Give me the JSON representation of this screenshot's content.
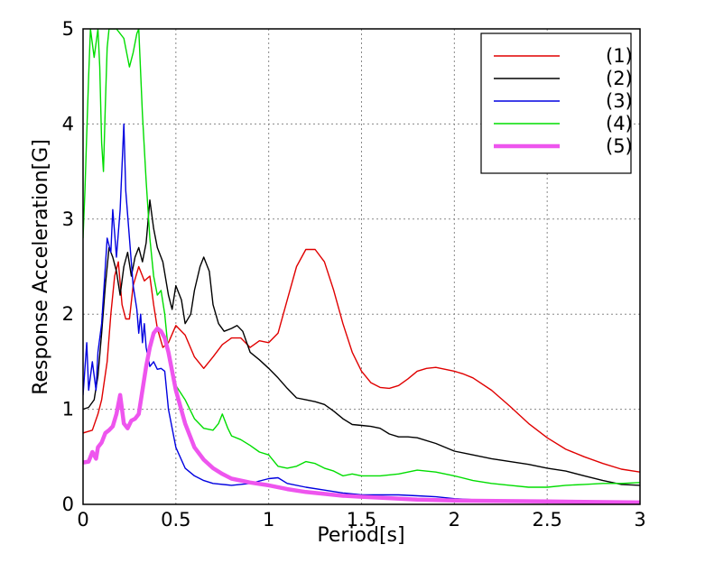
{
  "chart_data": {
    "type": "line",
    "title": "",
    "xlabel": "Period[s]",
    "ylabel": "Response Acceleration[G]",
    "xlim": [
      0,
      3
    ],
    "ylim": [
      0,
      5
    ],
    "x_ticks": [
      "0",
      "0.5",
      "1",
      "1.5",
      "2",
      "2.5",
      "3"
    ],
    "y_ticks": [
      "0",
      "1",
      "2",
      "3",
      "4",
      "5"
    ],
    "grid": true,
    "legend_position": "top-right",
    "series": [
      {
        "name": "(1)",
        "color": "#e00000",
        "line": "thin",
        "points": [
          [
            0.0,
            0.75
          ],
          [
            0.05,
            0.78
          ],
          [
            0.08,
            0.95
          ],
          [
            0.1,
            1.1
          ],
          [
            0.13,
            1.5
          ],
          [
            0.15,
            2.0
          ],
          [
            0.17,
            2.4
          ],
          [
            0.19,
            2.55
          ],
          [
            0.21,
            2.1
          ],
          [
            0.23,
            1.95
          ],
          [
            0.25,
            1.95
          ],
          [
            0.27,
            2.3
          ],
          [
            0.3,
            2.5
          ],
          [
            0.33,
            2.35
          ],
          [
            0.36,
            2.4
          ],
          [
            0.38,
            2.1
          ],
          [
            0.4,
            1.85
          ],
          [
            0.43,
            1.65
          ],
          [
            0.46,
            1.7
          ],
          [
            0.5,
            1.88
          ],
          [
            0.55,
            1.78
          ],
          [
            0.6,
            1.55
          ],
          [
            0.65,
            1.43
          ],
          [
            0.7,
            1.55
          ],
          [
            0.75,
            1.68
          ],
          [
            0.8,
            1.75
          ],
          [
            0.85,
            1.75
          ],
          [
            0.9,
            1.65
          ],
          [
            0.95,
            1.72
          ],
          [
            1.0,
            1.7
          ],
          [
            1.05,
            1.8
          ],
          [
            1.1,
            2.15
          ],
          [
            1.15,
            2.5
          ],
          [
            1.2,
            2.68
          ],
          [
            1.25,
            2.68
          ],
          [
            1.3,
            2.55
          ],
          [
            1.35,
            2.25
          ],
          [
            1.4,
            1.9
          ],
          [
            1.45,
            1.6
          ],
          [
            1.5,
            1.4
          ],
          [
            1.55,
            1.28
          ],
          [
            1.6,
            1.23
          ],
          [
            1.65,
            1.22
          ],
          [
            1.7,
            1.25
          ],
          [
            1.75,
            1.32
          ],
          [
            1.8,
            1.4
          ],
          [
            1.85,
            1.43
          ],
          [
            1.9,
            1.44
          ],
          [
            1.95,
            1.42
          ],
          [
            2.0,
            1.4
          ],
          [
            2.05,
            1.37
          ],
          [
            2.1,
            1.33
          ],
          [
            2.2,
            1.2
          ],
          [
            2.3,
            1.03
          ],
          [
            2.4,
            0.85
          ],
          [
            2.5,
            0.7
          ],
          [
            2.6,
            0.58
          ],
          [
            2.7,
            0.5
          ],
          [
            2.8,
            0.43
          ],
          [
            2.9,
            0.37
          ],
          [
            3.0,
            0.34
          ]
        ]
      },
      {
        "name": "(2)",
        "color": "#000000",
        "line": "thin",
        "points": [
          [
            0.0,
            1.0
          ],
          [
            0.03,
            1.02
          ],
          [
            0.06,
            1.1
          ],
          [
            0.08,
            1.35
          ],
          [
            0.1,
            1.8
          ],
          [
            0.12,
            2.3
          ],
          [
            0.14,
            2.7
          ],
          [
            0.16,
            2.6
          ],
          [
            0.18,
            2.45
          ],
          [
            0.2,
            2.2
          ],
          [
            0.22,
            2.5
          ],
          [
            0.24,
            2.65
          ],
          [
            0.26,
            2.4
          ],
          [
            0.28,
            2.6
          ],
          [
            0.3,
            2.7
          ],
          [
            0.32,
            2.55
          ],
          [
            0.34,
            2.75
          ],
          [
            0.36,
            3.2
          ],
          [
            0.38,
            2.9
          ],
          [
            0.4,
            2.7
          ],
          [
            0.43,
            2.55
          ],
          [
            0.46,
            2.2
          ],
          [
            0.48,
            2.05
          ],
          [
            0.5,
            2.3
          ],
          [
            0.53,
            2.15
          ],
          [
            0.55,
            1.9
          ],
          [
            0.58,
            2.0
          ],
          [
            0.6,
            2.25
          ],
          [
            0.63,
            2.5
          ],
          [
            0.65,
            2.6
          ],
          [
            0.68,
            2.45
          ],
          [
            0.7,
            2.1
          ],
          [
            0.73,
            1.9
          ],
          [
            0.76,
            1.82
          ],
          [
            0.8,
            1.85
          ],
          [
            0.83,
            1.88
          ],
          [
            0.86,
            1.82
          ],
          [
            0.9,
            1.6
          ],
          [
            0.95,
            1.52
          ],
          [
            1.0,
            1.43
          ],
          [
            1.05,
            1.33
          ],
          [
            1.1,
            1.22
          ],
          [
            1.15,
            1.12
          ],
          [
            1.2,
            1.1
          ],
          [
            1.25,
            1.08
          ],
          [
            1.3,
            1.05
          ],
          [
            1.35,
            0.98
          ],
          [
            1.4,
            0.9
          ],
          [
            1.45,
            0.84
          ],
          [
            1.5,
            0.83
          ],
          [
            1.55,
            0.82
          ],
          [
            1.6,
            0.8
          ],
          [
            1.65,
            0.74
          ],
          [
            1.7,
            0.71
          ],
          [
            1.75,
            0.71
          ],
          [
            1.8,
            0.7
          ],
          [
            1.9,
            0.64
          ],
          [
            2.0,
            0.56
          ],
          [
            2.1,
            0.52
          ],
          [
            2.2,
            0.48
          ],
          [
            2.3,
            0.45
          ],
          [
            2.4,
            0.42
          ],
          [
            2.5,
            0.38
          ],
          [
            2.6,
            0.35
          ],
          [
            2.7,
            0.3
          ],
          [
            2.8,
            0.25
          ],
          [
            2.9,
            0.21
          ],
          [
            3.0,
            0.2
          ]
        ]
      },
      {
        "name": "(3)",
        "color": "#0000e0",
        "line": "thin",
        "points": [
          [
            0.0,
            1.15
          ],
          [
            0.02,
            1.7
          ],
          [
            0.03,
            1.2
          ],
          [
            0.05,
            1.5
          ],
          [
            0.07,
            1.2
          ],
          [
            0.08,
            1.6
          ],
          [
            0.1,
            1.9
          ],
          [
            0.12,
            2.5
          ],
          [
            0.13,
            2.8
          ],
          [
            0.15,
            2.65
          ],
          [
            0.16,
            3.1
          ],
          [
            0.17,
            2.85
          ],
          [
            0.18,
            2.6
          ],
          [
            0.2,
            3.1
          ],
          [
            0.22,
            4.0
          ],
          [
            0.23,
            3.3
          ],
          [
            0.25,
            2.8
          ],
          [
            0.27,
            2.3
          ],
          [
            0.29,
            2.05
          ],
          [
            0.3,
            1.8
          ],
          [
            0.31,
            2.0
          ],
          [
            0.32,
            1.7
          ],
          [
            0.33,
            1.9
          ],
          [
            0.34,
            1.65
          ],
          [
            0.36,
            1.45
          ],
          [
            0.38,
            1.5
          ],
          [
            0.4,
            1.42
          ],
          [
            0.42,
            1.43
          ],
          [
            0.44,
            1.4
          ],
          [
            0.46,
            1.0
          ],
          [
            0.5,
            0.6
          ],
          [
            0.55,
            0.38
          ],
          [
            0.6,
            0.3
          ],
          [
            0.65,
            0.25
          ],
          [
            0.7,
            0.22
          ],
          [
            0.8,
            0.2
          ],
          [
            0.9,
            0.22
          ],
          [
            1.0,
            0.27
          ],
          [
            1.05,
            0.28
          ],
          [
            1.1,
            0.22
          ],
          [
            1.2,
            0.18
          ],
          [
            1.3,
            0.15
          ],
          [
            1.4,
            0.12
          ],
          [
            1.5,
            0.1
          ],
          [
            1.6,
            0.1
          ],
          [
            1.7,
            0.1
          ],
          [
            1.8,
            0.09
          ],
          [
            1.9,
            0.08
          ],
          [
            2.0,
            0.06
          ],
          [
            2.2,
            0.04
          ],
          [
            2.5,
            0.03
          ],
          [
            3.0,
            0.02
          ]
        ]
      },
      {
        "name": "(4)",
        "color": "#00dd00",
        "line": "thin",
        "points": [
          [
            0.0,
            2.8
          ],
          [
            0.01,
            3.3
          ],
          [
            0.02,
            3.9
          ],
          [
            0.03,
            4.5
          ],
          [
            0.04,
            5.0
          ],
          [
            0.06,
            4.7
          ],
          [
            0.08,
            5.0
          ],
          [
            0.09,
            4.6
          ],
          [
            0.1,
            3.8
          ],
          [
            0.11,
            3.5
          ],
          [
            0.12,
            4.2
          ],
          [
            0.13,
            4.8
          ],
          [
            0.14,
            5.0
          ],
          [
            0.18,
            5.0
          ],
          [
            0.22,
            4.9
          ],
          [
            0.25,
            4.6
          ],
          [
            0.27,
            4.75
          ],
          [
            0.29,
            4.95
          ],
          [
            0.3,
            5.0
          ],
          [
            0.32,
            4.1
          ],
          [
            0.34,
            3.4
          ],
          [
            0.36,
            2.8
          ],
          [
            0.38,
            2.4
          ],
          [
            0.4,
            2.2
          ],
          [
            0.42,
            2.25
          ],
          [
            0.44,
            2.0
          ],
          [
            0.46,
            1.6
          ],
          [
            0.48,
            1.35
          ],
          [
            0.5,
            1.25
          ],
          [
            0.55,
            1.1
          ],
          [
            0.6,
            0.9
          ],
          [
            0.65,
            0.8
          ],
          [
            0.7,
            0.78
          ],
          [
            0.73,
            0.85
          ],
          [
            0.75,
            0.95
          ],
          [
            0.78,
            0.8
          ],
          [
            0.8,
            0.72
          ],
          [
            0.85,
            0.68
          ],
          [
            0.9,
            0.62
          ],
          [
            0.95,
            0.55
          ],
          [
            1.0,
            0.52
          ],
          [
            1.05,
            0.4
          ],
          [
            1.1,
            0.38
          ],
          [
            1.15,
            0.4
          ],
          [
            1.2,
            0.45
          ],
          [
            1.25,
            0.43
          ],
          [
            1.3,
            0.38
          ],
          [
            1.35,
            0.35
          ],
          [
            1.4,
            0.3
          ],
          [
            1.45,
            0.32
          ],
          [
            1.5,
            0.3
          ],
          [
            1.6,
            0.3
          ],
          [
            1.7,
            0.32
          ],
          [
            1.8,
            0.36
          ],
          [
            1.9,
            0.34
          ],
          [
            2.0,
            0.3
          ],
          [
            2.1,
            0.25
          ],
          [
            2.2,
            0.22
          ],
          [
            2.3,
            0.2
          ],
          [
            2.4,
            0.18
          ],
          [
            2.5,
            0.18
          ],
          [
            2.6,
            0.2
          ],
          [
            2.7,
            0.21
          ],
          [
            2.8,
            0.22
          ],
          [
            2.9,
            0.22
          ],
          [
            3.0,
            0.23
          ]
        ]
      },
      {
        "name": "(5)",
        "color": "#ee55ee",
        "line": "thick",
        "points": [
          [
            0.0,
            0.44
          ],
          [
            0.03,
            0.45
          ],
          [
            0.05,
            0.55
          ],
          [
            0.07,
            0.48
          ],
          [
            0.08,
            0.6
          ],
          [
            0.1,
            0.65
          ],
          [
            0.12,
            0.75
          ],
          [
            0.14,
            0.78
          ],
          [
            0.16,
            0.82
          ],
          [
            0.18,
            0.95
          ],
          [
            0.2,
            1.15
          ],
          [
            0.22,
            0.85
          ],
          [
            0.24,
            0.8
          ],
          [
            0.26,
            0.88
          ],
          [
            0.28,
            0.9
          ],
          [
            0.3,
            0.95
          ],
          [
            0.32,
            1.2
          ],
          [
            0.34,
            1.45
          ],
          [
            0.36,
            1.65
          ],
          [
            0.38,
            1.8
          ],
          [
            0.4,
            1.85
          ],
          [
            0.42,
            1.82
          ],
          [
            0.44,
            1.75
          ],
          [
            0.46,
            1.6
          ],
          [
            0.48,
            1.4
          ],
          [
            0.5,
            1.2
          ],
          [
            0.55,
            0.85
          ],
          [
            0.6,
            0.6
          ],
          [
            0.65,
            0.47
          ],
          [
            0.7,
            0.38
          ],
          [
            0.75,
            0.32
          ],
          [
            0.8,
            0.27
          ],
          [
            0.9,
            0.23
          ],
          [
            1.0,
            0.2
          ],
          [
            1.1,
            0.16
          ],
          [
            1.2,
            0.13
          ],
          [
            1.3,
            0.11
          ],
          [
            1.4,
            0.09
          ],
          [
            1.5,
            0.08
          ],
          [
            1.6,
            0.07
          ],
          [
            1.8,
            0.05
          ],
          [
            2.0,
            0.04
          ],
          [
            2.5,
            0.03
          ],
          [
            3.0,
            0.02
          ]
        ]
      }
    ]
  }
}
